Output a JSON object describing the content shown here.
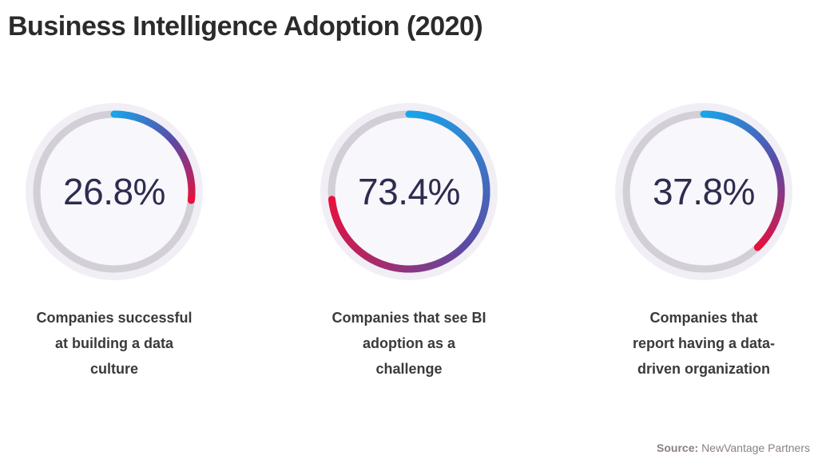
{
  "title": "Business Intelligence Adoption (2020)",
  "chart_data": [
    {
      "type": "gauge",
      "value": 26.8,
      "display": "26.8%",
      "max": 100,
      "caption_lines": [
        "Companies successful",
        "at building a data",
        "culture"
      ]
    },
    {
      "type": "gauge",
      "value": 73.4,
      "display": "73.4%",
      "max": 100,
      "caption_lines": [
        "Companies that see BI",
        "adoption as a",
        "challenge"
      ]
    },
    {
      "type": "gauge",
      "value": 37.8,
      "display": "37.8%",
      "max": 100,
      "caption_lines": [
        "Companies that",
        "report having a data-",
        "driven organization"
      ]
    }
  ],
  "colors": {
    "arc_start": "#1aa3e8",
    "arc_mid": "#5b4aa6",
    "arc_end": "#e8103c",
    "track": "#d2d0d6",
    "value_text": "#2e2c4f"
  },
  "source": {
    "label": "Source:",
    "text": "NewVantage Partners"
  }
}
